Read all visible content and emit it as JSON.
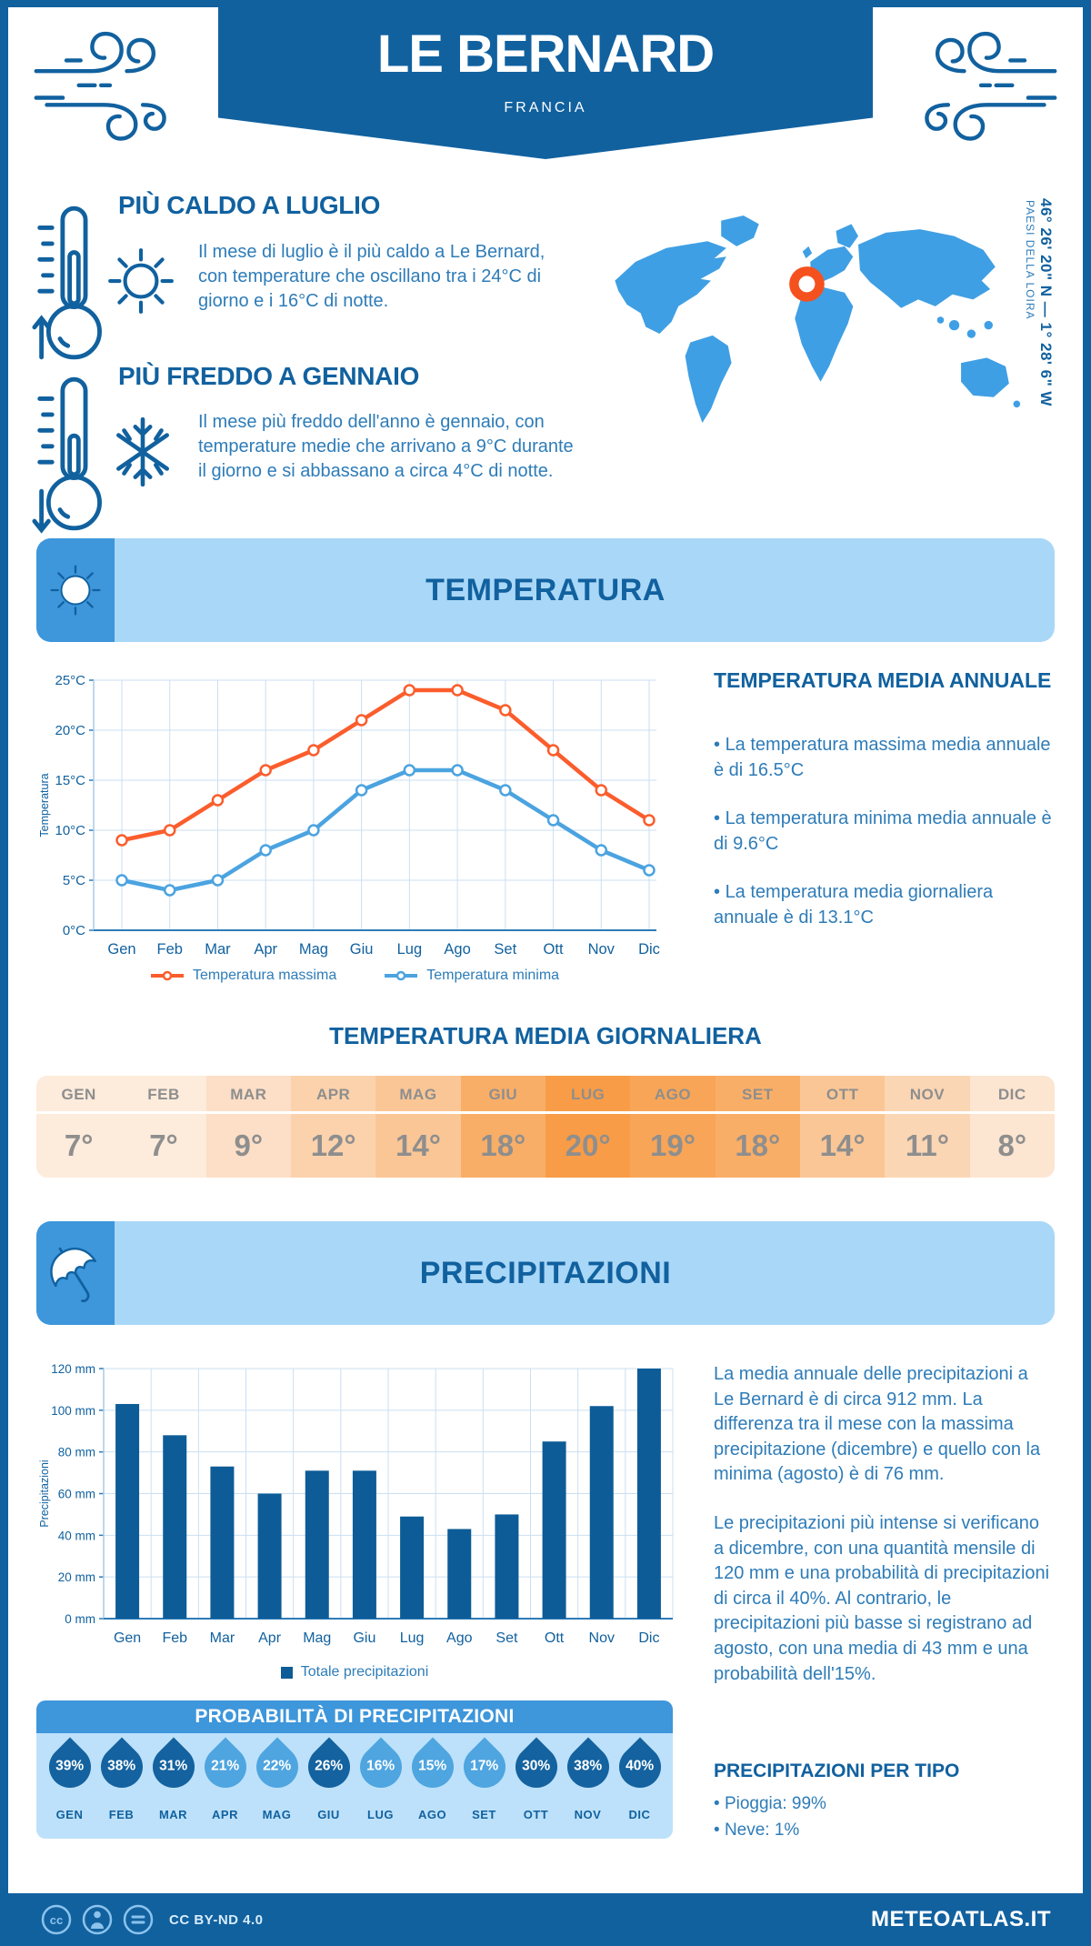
{
  "header": {
    "title": "LE BERNARD",
    "subtitle": "FRANCIA"
  },
  "highlights": {
    "warm": {
      "title": "PIÙ CALDO A LUGLIO",
      "text": "Il mese di luglio è il più caldo a Le Bernard, con temperature che oscillano tra i 24°C di giorno e i 16°C di notte."
    },
    "cold": {
      "title": "PIÙ FREDDO A GENNAIO",
      "text": "Il mese più freddo dell'anno è gennaio, con temperature medie che arrivano a 9°C durante il giorno e si abbassano a circa 4°C di notte."
    }
  },
  "map": {
    "coordinates": "46° 26' 20\" N — 1° 28' 6\" W",
    "region": "PAESI DELLA LOIRA",
    "land_color": "#3F9FE4",
    "marker_color": "#F4511E"
  },
  "temperature": {
    "banner": "TEMPERATURA",
    "annual_title": "TEMPERATURA MEDIA ANNUALE",
    "annual_bullets": [
      "La temperatura massima media annuale è di 16.5°C",
      "La temperatura minima media annuale è di 9.6°C",
      "La temperatura media giornaliera annuale è di 13.1°C"
    ],
    "daily_title": "TEMPERATURA MEDIA GIORNALIERA",
    "daily_colors": [
      "#FDEBDB",
      "#FDEBDB",
      "#FCDFC6",
      "#FBD2AC",
      "#FAC695",
      "#F9AE67",
      "#F89C47",
      "#F8A557",
      "#F9AE67",
      "#FAC695",
      "#FBD6B4",
      "#FCE5D1"
    ]
  },
  "precipitation": {
    "banner": "PRECIPITAZIONI",
    "paragraphs": [
      "La media annuale delle precipitazioni a Le Bernard è di circa 912 mm. La differenza tra il mese con la massima precipitazione (dicembre) e quello con la minima (agosto) è di 76 mm.",
      "Le precipitazioni più intense si verificano a dicembre, con una quantità mensile di 120 mm e una probabilità di precipitazioni di circa il 40%. Al contrario, le precipitazioni più basse si registrano ad agosto, con una media di 43 mm e una probabilità dell'15%."
    ],
    "probability": {
      "title": "PROBABILITÀ DI PRECIPITAZIONI",
      "dark": [
        true,
        true,
        true,
        false,
        false,
        true,
        false,
        false,
        false,
        true,
        true,
        true
      ]
    },
    "types": {
      "title": "PRECIPITAZIONI PER TIPO",
      "bullets": [
        "Pioggia: 99%",
        "Neve: 1%"
      ]
    }
  },
  "footer": {
    "license": "CC BY-ND 4.0",
    "site": "METEOATLAS.IT"
  },
  "chart_data": [
    {
      "type": "line",
      "title": "",
      "categories": [
        "Gen",
        "Feb",
        "Mar",
        "Apr",
        "Mag",
        "Giu",
        "Lug",
        "Ago",
        "Set",
        "Ott",
        "Nov",
        "Dic"
      ],
      "series": [
        {
          "name": "Temperatura massima",
          "color": "#FB5D2C",
          "values": [
            9,
            10,
            13,
            16,
            18,
            21,
            24,
            24,
            22,
            18,
            14,
            11
          ]
        },
        {
          "name": "Temperatura minima",
          "color": "#4BA3E0",
          "values": [
            5,
            4,
            5,
            8,
            10,
            14,
            16,
            16,
            14,
            11,
            8,
            6
          ]
        }
      ],
      "xlabel": "",
      "ylabel": "Temperatura",
      "ylim": [
        0,
        25
      ],
      "ytick_step": 5,
      "ytick_suffix": "°C",
      "grid": true,
      "legend_position": "bottom"
    },
    {
      "type": "bar",
      "title": "",
      "categories": [
        "Gen",
        "Feb",
        "Mar",
        "Apr",
        "Mag",
        "Giu",
        "Lug",
        "Ago",
        "Set",
        "Ott",
        "Nov",
        "Dic"
      ],
      "values": [
        103,
        88,
        73,
        60,
        71,
        71,
        49,
        43,
        50,
        85,
        102,
        120
      ],
      "name": "Totale precipitazioni",
      "color": "#0D5C97",
      "xlabel": "",
      "ylabel": "Precipitazioni",
      "ylim": [
        0,
        120
      ],
      "ytick_step": 20,
      "ytick_suffix": " mm",
      "grid": true,
      "legend_position": "bottom"
    },
    {
      "type": "table",
      "title": "TEMPERATURA MEDIA GIORNALIERA",
      "categories": [
        "GEN",
        "FEB",
        "MAR",
        "APR",
        "MAG",
        "GIU",
        "LUG",
        "AGO",
        "SET",
        "OTT",
        "NOV",
        "DIC"
      ],
      "values": [
        "7°",
        "7°",
        "9°",
        "12°",
        "14°",
        "18°",
        "20°",
        "19°",
        "18°",
        "14°",
        "11°",
        "8°"
      ]
    },
    {
      "type": "table",
      "title": "PROBABILITÀ DI PRECIPITAZIONI",
      "categories": [
        "GEN",
        "FEB",
        "MAR",
        "APR",
        "MAG",
        "GIU",
        "LUG",
        "AGO",
        "SET",
        "OTT",
        "NOV",
        "DIC"
      ],
      "values": [
        "39%",
        "38%",
        "31%",
        "21%",
        "22%",
        "26%",
        "16%",
        "15%",
        "17%",
        "30%",
        "38%",
        "40%"
      ]
    }
  ]
}
